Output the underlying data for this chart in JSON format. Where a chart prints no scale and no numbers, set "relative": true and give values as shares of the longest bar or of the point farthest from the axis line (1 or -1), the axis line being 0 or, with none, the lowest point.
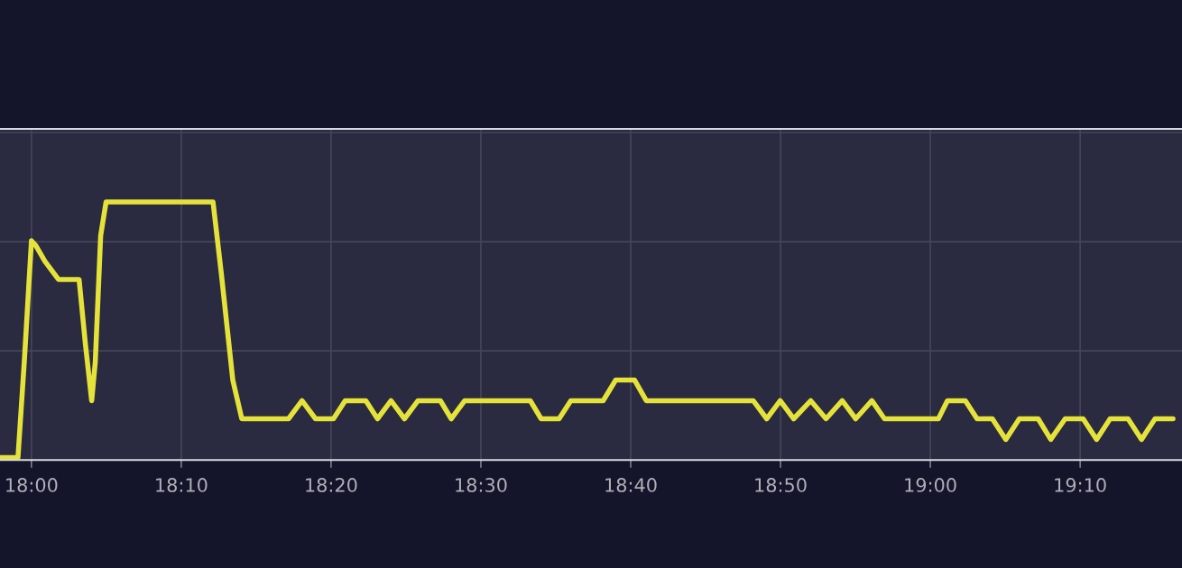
{
  "chart_data": {
    "type": "line",
    "relative": true,
    "grid": true,
    "line_style": "solid",
    "x": [
      17.965,
      17.985,
      17.992,
      18.0,
      18.005,
      18.015,
      18.03,
      18.053,
      18.06,
      18.067,
      18.071,
      18.077,
      18.083,
      18.202,
      18.211,
      18.224,
      18.234,
      18.286,
      18.301,
      18.316,
      18.336,
      18.349,
      18.372,
      18.385,
      18.4,
      18.415,
      18.43,
      18.455,
      18.467,
      18.482,
      18.555,
      18.567,
      18.587,
      18.6,
      18.636,
      18.65,
      18.671,
      18.684,
      18.803,
      18.818,
      18.833,
      18.848,
      18.867,
      18.884,
      18.902,
      18.917,
      18.935,
      18.949,
      19.009,
      19.019,
      19.039,
      19.052,
      19.069,
      19.084,
      19.099,
      19.12,
      19.134,
      19.15,
      19.17,
      19.185,
      19.2,
      19.22,
      19.235,
      19.25,
      19.27
    ],
    "series": [
      {
        "color": "#e5e23a",
        "values": [
          0.01,
          0.01,
          0.38,
          0.85,
          0.83,
          0.77,
          0.7,
          0.7,
          0.45,
          0.23,
          0.38,
          0.87,
          1.0,
          1.0,
          0.73,
          0.31,
          0.16,
          0.16,
          0.23,
          0.16,
          0.16,
          0.23,
          0.23,
          0.16,
          0.23,
          0.16,
          0.23,
          0.23,
          0.16,
          0.23,
          0.23,
          0.16,
          0.16,
          0.23,
          0.23,
          0.31,
          0.31,
          0.23,
          0.23,
          0.16,
          0.23,
          0.16,
          0.23,
          0.16,
          0.23,
          0.16,
          0.23,
          0.16,
          0.16,
          0.23,
          0.23,
          0.16,
          0.16,
          0.08,
          0.16,
          0.16,
          0.08,
          0.16,
          0.16,
          0.08,
          0.16,
          0.16,
          0.08,
          0.16,
          0.16
        ]
      }
    ],
    "xlim": [
      17.965,
      19.28
    ],
    "xticks": [
      {
        "value": 18.0,
        "label": "18:00"
      },
      {
        "value": 18.16667,
        "label": "18:10"
      },
      {
        "value": 18.33333,
        "label": "18:20"
      },
      {
        "value": 18.5,
        "label": "18:30"
      },
      {
        "value": 18.66667,
        "label": "18:40"
      },
      {
        "value": 18.83333,
        "label": "18:50"
      },
      {
        "value": 19.0,
        "label": "19:00"
      },
      {
        "value": 19.16667,
        "label": "19:10"
      }
    ]
  }
}
